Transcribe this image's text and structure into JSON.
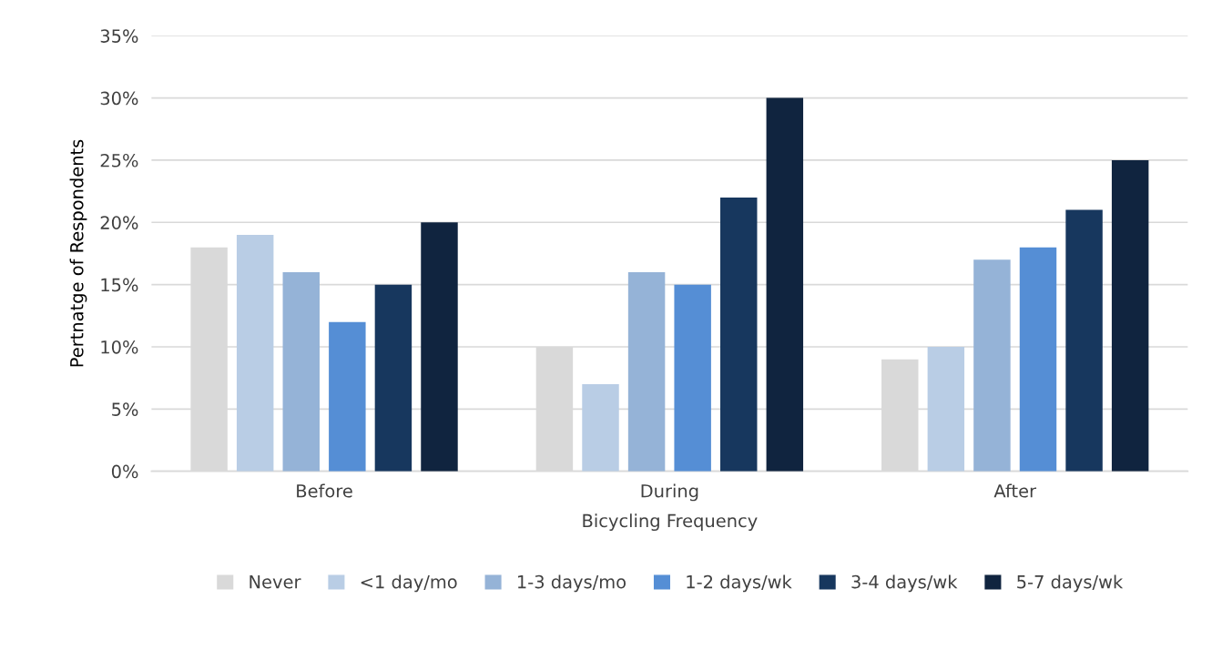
{
  "chart_data": {
    "type": "bar",
    "xlabel": "Bicycling Frequency",
    "ylabel": "Pertnatge of Respondents",
    "categories": [
      "Before",
      "During",
      "After"
    ],
    "series": [
      {
        "name": "Never",
        "color": "#d9d9d9",
        "values": [
          18,
          10,
          9
        ]
      },
      {
        "name": "<1 day/mo",
        "color": "#b9cde5",
        "values": [
          19,
          7,
          10
        ]
      },
      {
        "name": "1-3 days/mo",
        "color": "#95b3d7",
        "values": [
          16,
          16,
          17
        ]
      },
      {
        "name": "1-2 days/wk",
        "color": "#558ed5",
        "values": [
          12,
          15,
          18
        ]
      },
      {
        "name": "3-4 days/wk",
        "color": "#17375e",
        "values": [
          15,
          22,
          21
        ]
      },
      {
        "name": "5-7 days/wk",
        "color": "#10243f",
        "values": [
          20,
          30,
          25
        ]
      }
    ],
    "ylim": [
      0,
      35
    ],
    "yticks": [
      {
        "value": 0,
        "label": "0%"
      },
      {
        "value": 5,
        "label": "5%"
      },
      {
        "value": 10,
        "label": "10%"
      },
      {
        "value": 15,
        "label": "15%"
      },
      {
        "value": 20,
        "label": "20%"
      },
      {
        "value": 25,
        "label": "25%"
      },
      {
        "value": 30,
        "label": "30%"
      },
      {
        "value": 35,
        "label": "35%"
      }
    ],
    "grid": "y",
    "legend": "bottom"
  }
}
